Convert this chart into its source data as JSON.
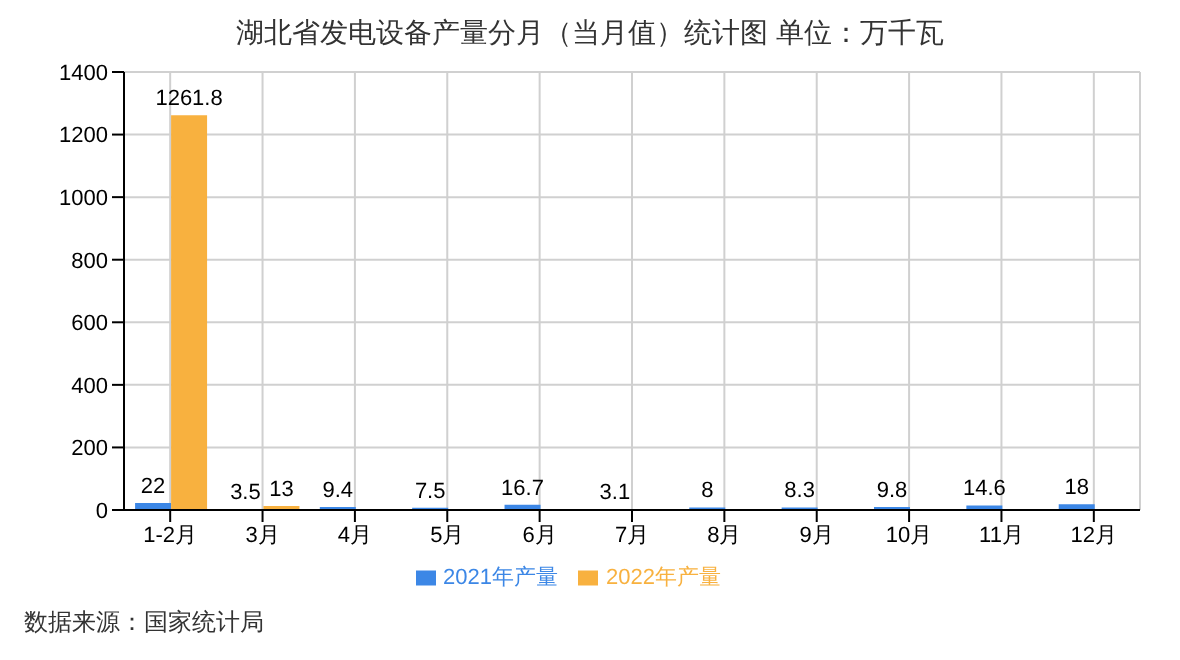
{
  "chart_data": {
    "type": "bar",
    "title": "湖北省发电设备产量分月（当月值）统计图 单位：万千瓦",
    "categories": [
      "1-2月",
      "3月",
      "4月",
      "5月",
      "6月",
      "7月",
      "8月",
      "9月",
      "10月",
      "11月",
      "12月"
    ],
    "series": [
      {
        "name": "2021年产量",
        "color": "#3c87e6",
        "values": [
          22,
          3.5,
          9.4,
          7.5,
          16.7,
          3.1,
          8,
          8.3,
          9.8,
          14.6,
          18
        ]
      },
      {
        "name": "2022年产量",
        "color": "#f8b13f",
        "values": [
          1261.8,
          13,
          null,
          null,
          null,
          null,
          null,
          null,
          null,
          null,
          null
        ]
      }
    ],
    "ylim": [
      0,
      1400
    ],
    "yticks": [
      0,
      200,
      400,
      600,
      800,
      1000,
      1200,
      1400
    ],
    "grid": true,
    "legend": "bottom",
    "data_labels": true,
    "annotations": [
      "数据来源：国家统计局"
    ]
  }
}
